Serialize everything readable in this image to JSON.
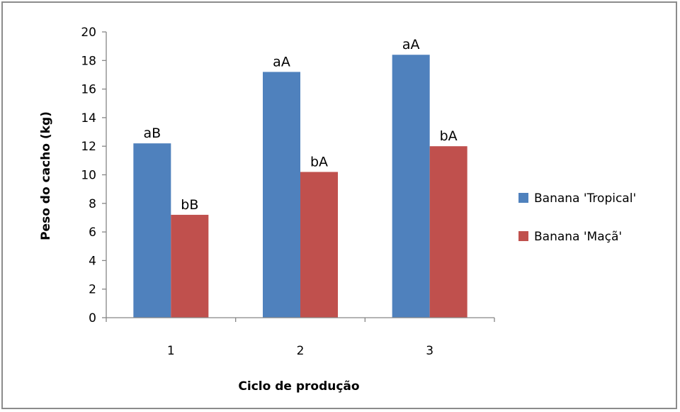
{
  "chart_data": {
    "type": "bar",
    "title": "",
    "xlabel": "Ciclo de produção",
    "ylabel": "Peso do cacho (kg)",
    "categories": [
      "1",
      "2",
      "3"
    ],
    "ylim": [
      0,
      20
    ],
    "yticks": [
      0,
      2,
      4,
      6,
      8,
      10,
      12,
      14,
      16,
      18,
      20
    ],
    "grid": false,
    "legend_position": "right",
    "series": [
      {
        "name": "Banana 'Tropical'",
        "color": "#4f81bd",
        "values": [
          12.2,
          17.2,
          18.4
        ],
        "labels": [
          "aB",
          "aA",
          "aA"
        ]
      },
      {
        "name": "Banana 'Maçã'",
        "color": "#c0504d",
        "values": [
          7.2,
          10.2,
          12.0
        ],
        "labels": [
          "bB",
          "bA",
          "bA"
        ]
      }
    ]
  }
}
